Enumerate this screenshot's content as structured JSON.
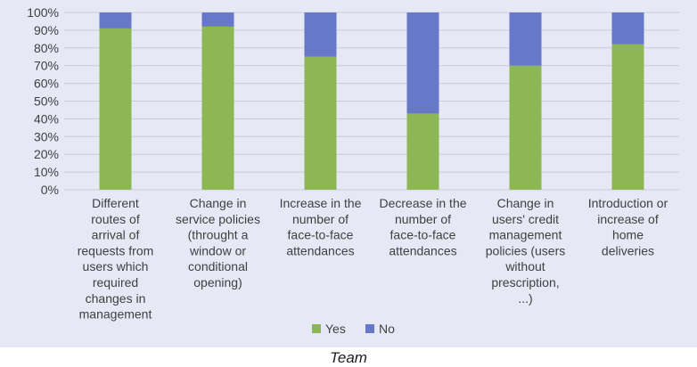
{
  "chart_data": {
    "type": "bar",
    "stacked": true,
    "categories": [
      [
        "Different",
        "routes of",
        "arrival of",
        "requests from",
        "users which",
        "required",
        "changes in",
        "management"
      ],
      [
        "Change in",
        "service policies",
        "(throught a",
        "window or",
        "conditional",
        "opening)"
      ],
      [
        "Increase in the",
        "number of",
        "face-to-face",
        "attendances"
      ],
      [
        "Decrease in the",
        "number of",
        "face-to-face",
        "attendances"
      ],
      [
        "Change in",
        "users' credit",
        "management",
        "policies (users",
        "without",
        "prescription,",
        "...)"
      ],
      [
        "Introduction or",
        "increase of",
        "home",
        "deliveries"
      ]
    ],
    "series": [
      {
        "name": "Yes",
        "color": "#8db654",
        "values": [
          91,
          92,
          75,
          43,
          70,
          82
        ]
      },
      {
        "name": "No",
        "color": "#6778c8",
        "values": [
          9,
          8,
          25,
          57,
          30,
          18
        ]
      }
    ],
    "yticks": [
      "0%",
      "10%",
      "20%",
      "30%",
      "40%",
      "50%",
      "60%",
      "70%",
      "80%",
      "90%",
      "100%"
    ],
    "ylim": [
      0,
      100
    ],
    "grid": true,
    "legend": "bottom-center"
  },
  "caption": "Team"
}
